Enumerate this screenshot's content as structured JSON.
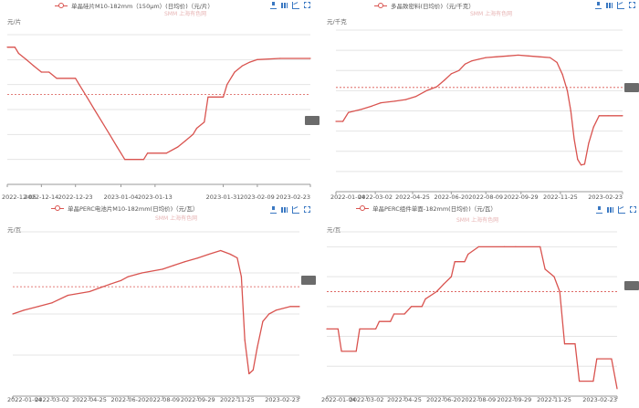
{
  "charts": [
    {
      "legend": "单晶硅片M10-182mm（150μm）(日均价)（元/片）",
      "unit": "元/片",
      "watermark": "SMM 上海有色网",
      "colors": {
        "line": "#d9534f",
        "avg": "#d9534f"
      },
      "chart_data": {
        "type": "line",
        "series": [
          {
            "name": "单晶硅片M10-182mm（150μm）(日均价)（元/片）",
            "points": [
              [
                "2022-12-05",
                7.5
              ],
              [
                "2022-12-07",
                7.5
              ],
              [
                "2022-12-08",
                7.25
              ],
              [
                "2022-12-10",
                7.0
              ],
              [
                "2022-12-12",
                6.75
              ],
              [
                "2022-12-14",
                6.5
              ],
              [
                "2022-12-16",
                6.5
              ],
              [
                "2022-12-18",
                6.25
              ],
              [
                "2022-12-23",
                6.25
              ],
              [
                "2022-12-24",
                6.0
              ],
              [
                "2022-12-26",
                5.5
              ],
              [
                "2022-12-28",
                5.0
              ],
              [
                "2022-12-30",
                4.5
              ],
              [
                "2023-01-01",
                4.0
              ],
              [
                "2023-01-03",
                3.5
              ],
              [
                "2023-01-04",
                3.25
              ],
              [
                "2023-01-05",
                3.0
              ],
              [
                "2023-01-10",
                3.0
              ],
              [
                "2023-01-11",
                3.25
              ],
              [
                "2023-01-16",
                3.25
              ],
              [
                "2023-01-19",
                3.5
              ],
              [
                "2023-01-21",
                3.75
              ],
              [
                "2023-01-23",
                4.0
              ],
              [
                "2023-01-24",
                4.25
              ],
              [
                "2023-01-26",
                4.5
              ],
              [
                "2023-01-27",
                5.5
              ],
              [
                "2023-01-31",
                5.5
              ],
              [
                "2023-02-01",
                6.0
              ],
              [
                "2023-02-03",
                6.5
              ],
              [
                "2023-02-05",
                6.75
              ],
              [
                "2023-02-07",
                6.9
              ],
              [
                "2023-02-09",
                7.0
              ],
              [
                "2023-02-15",
                7.05
              ],
              [
                "2023-02-23",
                7.05
              ]
            ]
          }
        ],
        "xlim": [
          "2022-12-05",
          "2023-02-23"
        ],
        "ylim": [
          2,
          8
        ],
        "x_ticks": [
          "2022-12-05",
          "2022-12-14",
          "2022-12-23",
          "2023-01-04",
          "2023-01-13",
          "2023-01-31",
          "2023-02-09",
          "2023-02-23"
        ],
        "y_grid": [
          2,
          3,
          4,
          5,
          6,
          7,
          8
        ],
        "average_line": 5.6,
        "y_tick_labels_visible": false
      }
    },
    {
      "legend": "多晶致密料(日均价)（元/千克）",
      "unit": "元/千克",
      "watermark": "SMM 上海有色网",
      "colors": {
        "line": "#d9534f",
        "avg": "#d9534f"
      },
      "chart_data": {
        "type": "line",
        "series": [
          {
            "name": "多晶致密料(日均价)（元/千克）",
            "points": [
              [
                "2022-01-04",
                227
              ],
              [
                "2022-01-14",
                227
              ],
              [
                "2022-01-22",
                238
              ],
              [
                "2022-02-10",
                242
              ],
              [
                "2022-02-25",
                246
              ],
              [
                "2022-03-10",
                250
              ],
              [
                "2022-03-30",
                252
              ],
              [
                "2022-04-15",
                254
              ],
              [
                "2022-04-30",
                258
              ],
              [
                "2022-05-15",
                265
              ],
              [
                "2022-05-30",
                270
              ],
              [
                "2022-06-10",
                278
              ],
              [
                "2022-06-20",
                286
              ],
              [
                "2022-07-01",
                290
              ],
              [
                "2022-07-10",
                298
              ],
              [
                "2022-07-20",
                302
              ],
              [
                "2022-07-30",
                304
              ],
              [
                "2022-08-09",
                306
              ],
              [
                "2022-08-25",
                307
              ],
              [
                "2022-09-10",
                308
              ],
              [
                "2022-09-25",
                309
              ],
              [
                "2022-10-10",
                308
              ],
              [
                "2022-10-25",
                307
              ],
              [
                "2022-11-10",
                306
              ],
              [
                "2022-11-20",
                300
              ],
              [
                "2022-11-28",
                285
              ],
              [
                "2022-12-05",
                265
              ],
              [
                "2022-12-10",
                240
              ],
              [
                "2022-12-15",
                205
              ],
              [
                "2022-12-20",
                180
              ],
              [
                "2022-12-25",
                173
              ],
              [
                "2022-12-30",
                174
              ],
              [
                "2023-01-05",
                200
              ],
              [
                "2023-01-12",
                220
              ],
              [
                "2023-01-20",
                234
              ],
              [
                "2023-02-02",
                234
              ],
              [
                "2023-02-23",
                234
              ]
            ]
          }
        ],
        "xlim": [
          "2022-01-04",
          "2023-02-23"
        ],
        "ylim": [
          140,
          340
        ],
        "x_ticks": [
          "2022-01-04",
          "2022-03-02",
          "2022-04-25",
          "2022-06-20",
          "2022-08-09",
          "2022-09-29",
          "2022-11-25",
          "2023-02-23"
        ],
        "y_grid": [
          140,
          165,
          190,
          215,
          240,
          265,
          290,
          315,
          340
        ],
        "average_line": 269,
        "y_tick_labels_visible": false
      }
    },
    {
      "legend": "单晶PERC电池片M10-182mm(日均价)（元/瓦）",
      "unit": "元/瓦",
      "watermark": "SMM 上海有色网",
      "colors": {
        "line": "#d9534f",
        "avg": "#d9534f"
      },
      "chart_data": {
        "type": "line",
        "series": [
          {
            "name": "单晶PERC电池片M10-182mm(日均价)（元/瓦）",
            "points": [
              [
                "2022-01-04",
                1.02
              ],
              [
                "2022-01-20",
                1.03
              ],
              [
                "2022-02-10",
                1.04
              ],
              [
                "2022-03-02",
                1.05
              ],
              [
                "2022-03-25",
                1.07
              ],
              [
                "2022-04-25",
                1.08
              ],
              [
                "2022-05-10",
                1.09
              ],
              [
                "2022-05-25",
                1.1
              ],
              [
                "2022-06-10",
                1.11
              ],
              [
                "2022-06-20",
                1.12
              ],
              [
                "2022-07-10",
                1.13
              ],
              [
                "2022-08-09",
                1.14
              ],
              [
                "2022-08-25",
                1.15
              ],
              [
                "2022-09-10",
                1.16
              ],
              [
                "2022-09-29",
                1.17
              ],
              [
                "2022-10-15",
                1.18
              ],
              [
                "2022-11-01",
                1.19
              ],
              [
                "2022-11-15",
                1.18
              ],
              [
                "2022-11-25",
                1.17
              ],
              [
                "2022-12-01",
                1.12
              ],
              [
                "2022-12-06",
                0.95
              ],
              [
                "2022-12-12",
                0.86
              ],
              [
                "2022-12-18",
                0.87
              ],
              [
                "2022-12-24",
                0.93
              ],
              [
                "2023-01-01",
                1.0
              ],
              [
                "2023-01-10",
                1.02
              ],
              [
                "2023-01-20",
                1.03
              ],
              [
                "2023-02-10",
                1.04
              ],
              [
                "2023-02-23",
                1.04
              ]
            ]
          }
        ],
        "xlim": [
          "2022-01-04",
          "2023-02-23"
        ],
        "ylim": [
          0.8,
          1.24
        ],
        "x_ticks": [
          "2022-01-04",
          "2022-03-02",
          "2022-04-25",
          "2022-06-20",
          "2022-08-09",
          "2022-09-29",
          "2022-11-25",
          "2023-02-23"
        ],
        "y_grid": [
          0.8,
          0.91,
          1.02,
          1.13,
          1.24
        ],
        "average_line": 1.093,
        "y_tick_labels_visible": false
      }
    },
    {
      "legend": "单晶PERC组件单面-182mm(日均价)（元/瓦）",
      "unit": "元/瓦",
      "watermark": "SMM 上海有色网",
      "colors": {
        "line": "#d9534f",
        "avg": "#d9534f"
      },
      "chart_data": {
        "type": "line",
        "series": [
          {
            "name": "单晶PERC组件单面-182mm(日均价)（元/瓦）",
            "points": [
              [
                "2022-01-04",
                1.87
              ],
              [
                "2022-01-20",
                1.87
              ],
              [
                "2022-01-25",
                1.84
              ],
              [
                "2022-02-15",
                1.84
              ],
              [
                "2022-02-20",
                1.87
              ],
              [
                "2022-03-15",
                1.87
              ],
              [
                "2022-03-20",
                1.88
              ],
              [
                "2022-04-05",
                1.88
              ],
              [
                "2022-04-10",
                1.89
              ],
              [
                "2022-04-25",
                1.89
              ],
              [
                "2022-05-05",
                1.9
              ],
              [
                "2022-05-20",
                1.9
              ],
              [
                "2022-05-25",
                1.91
              ],
              [
                "2022-06-10",
                1.92
              ],
              [
                "2022-06-20",
                1.93
              ],
              [
                "2022-07-01",
                1.94
              ],
              [
                "2022-07-06",
                1.96
              ],
              [
                "2022-07-20",
                1.96
              ],
              [
                "2022-07-25",
                1.97
              ],
              [
                "2022-08-09",
                1.98
              ],
              [
                "2022-09-15",
                1.98
              ],
              [
                "2022-10-01",
                1.98
              ],
              [
                "2022-11-05",
                1.98
              ],
              [
                "2022-11-12",
                1.95
              ],
              [
                "2022-11-25",
                1.94
              ],
              [
                "2022-12-03",
                1.92
              ],
              [
                "2022-12-10",
                1.85
              ],
              [
                "2022-12-25",
                1.85
              ],
              [
                "2022-12-31",
                1.8
              ],
              [
                "2023-01-20",
                1.8
              ],
              [
                "2023-01-25",
                1.83
              ],
              [
                "2023-02-15",
                1.83
              ],
              [
                "2023-02-23",
                1.79
              ]
            ]
          }
        ],
        "xlim": [
          "2022-01-04",
          "2023-02-23"
        ],
        "ylim": [
          1.78,
          2.0
        ],
        "x_ticks": [
          "2022-01-04",
          "2022-03-02",
          "2022-04-25",
          "2022-06-20",
          "2022-08-09",
          "2022-09-29",
          "2022-11-25",
          "2023-02-23"
        ],
        "y_grid": [
          1.78,
          1.82,
          1.86,
          1.9,
          1.94,
          1.98,
          2.0
        ],
        "average_line": 1.92,
        "y_tick_labels_visible": false
      }
    }
  ]
}
